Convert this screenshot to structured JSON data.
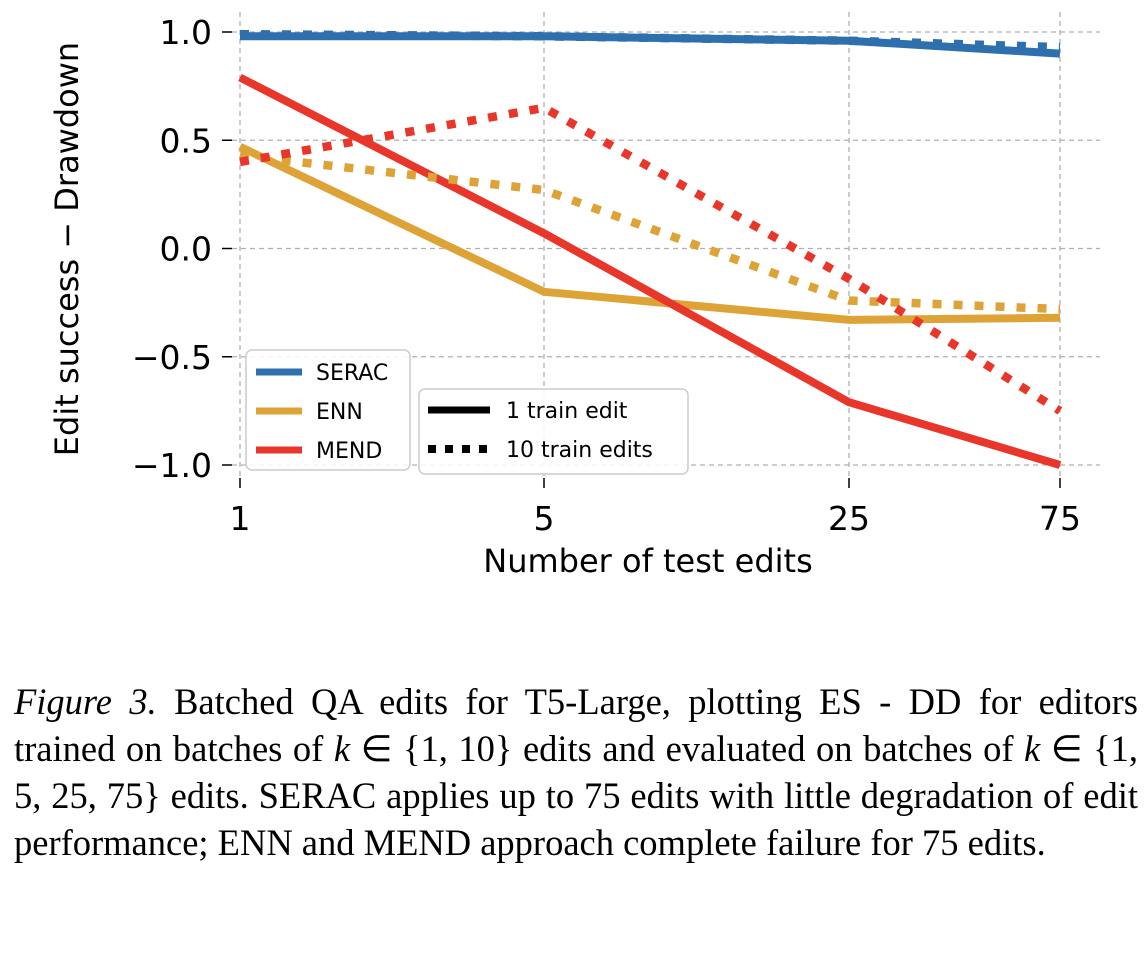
{
  "chart_data": {
    "type": "line",
    "title": "",
    "xlabel": "Number of test edits",
    "ylabel": "Edit success − Drawdown",
    "categories": [
      "1",
      "5",
      "25",
      "75"
    ],
    "x": [
      1,
      5,
      25,
      75
    ],
    "x_scale": "categorical",
    "ylim": [
      -1.08,
      1.08
    ],
    "yticks": [
      1.0,
      0.5,
      0.0,
      -0.5,
      -1.0
    ],
    "ytick_labels": [
      "1.0",
      "0.5",
      "0.0",
      "−0.5",
      "−1.0"
    ],
    "grid": true,
    "colors": {
      "SERAC": "#2e6fad",
      "ENN": "#dea337",
      "MEND": "#e8372a"
    },
    "series": [
      {
        "name": "SERAC",
        "train": "1 train edit",
        "style": "solid",
        "values": [
          0.98,
          0.98,
          0.96,
          0.9
        ]
      },
      {
        "name": "SERAC",
        "train": "10 train edits",
        "style": "dotted",
        "values": [
          0.99,
          0.98,
          0.96,
          0.93
        ]
      },
      {
        "name": "ENN",
        "train": "1 train edit",
        "style": "solid",
        "values": [
          0.47,
          -0.2,
          -0.33,
          -0.32
        ]
      },
      {
        "name": "ENN",
        "train": "10 train edits",
        "style": "dotted",
        "values": [
          0.43,
          0.27,
          -0.24,
          -0.28
        ]
      },
      {
        "name": "MEND",
        "train": "1 train edit",
        "style": "solid",
        "values": [
          0.79,
          0.07,
          -0.71,
          -1.0
        ]
      },
      {
        "name": "MEND",
        "train": "10 train edits",
        "style": "dotted",
        "values": [
          0.4,
          0.65,
          -0.14,
          -0.75
        ]
      }
    ],
    "legend_methods": {
      "placement": "lower-left",
      "entries": [
        "SERAC",
        "ENN",
        "MEND"
      ]
    },
    "legend_styles": {
      "placement": "lower-center",
      "entries": [
        "1 train edit",
        "10 train edits"
      ]
    }
  },
  "caption": {
    "figure_label": "Figure 3.",
    "part1": " Batched QA edits for T5-Large, plotting ES - DD for editors trained on batches of ",
    "math1_var": "k",
    "math1_set": " ∈ {1, 10}",
    "part2": " edits and evaluated on batches of ",
    "math2_var": "k",
    "math2_set": " ∈ {1, 5, 25, 75}",
    "part3": " edits.  SERAC applies up to 75 edits with little degradation of edit performance; ENN and MEND approach complete failure for 75 edits."
  }
}
